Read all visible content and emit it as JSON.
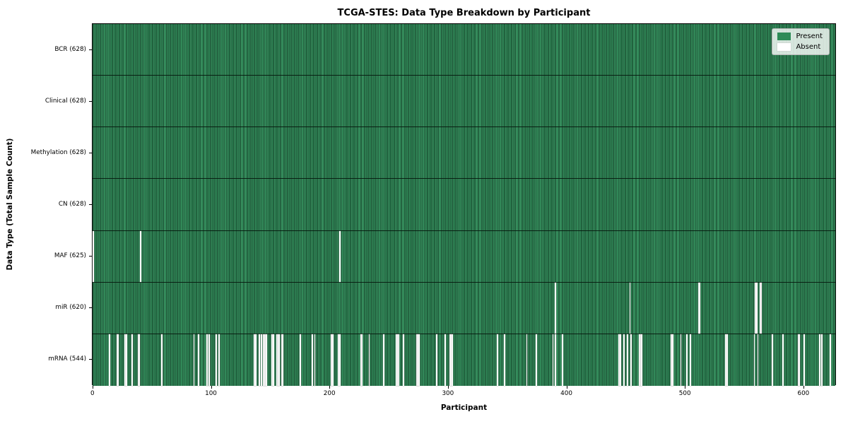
{
  "chart": {
    "title": "TCGA-STES: Data Type Breakdown by Participant",
    "xlabel": "Participant",
    "ylabel": "Data Type (Total Sample Count)"
  },
  "legend": {
    "present_label": "Present",
    "absent_label": "Absent"
  },
  "colors": {
    "present": "#2e8b57",
    "absent": "#ffffff",
    "bar_edge": "#0a2014",
    "axis": "#000000",
    "legend_background": "#e8ece8"
  },
  "chart_data": {
    "type": "heatmap",
    "title": "TCGA-STES: Data Type Breakdown by Participant",
    "xlabel": "Participant",
    "ylabel": "Data Type (Total Sample Count)",
    "legend": [
      "Present",
      "Absent"
    ],
    "legend_position": "upper right",
    "n_participants": 628,
    "x_range": [
      0,
      628
    ],
    "x_ticks": [
      0,
      100,
      200,
      300,
      400,
      500,
      600
    ],
    "rows": [
      {
        "data_type": "BCR",
        "label": "BCR (628)",
        "present_count": 628,
        "absent_participants": []
      },
      {
        "data_type": "Clinical",
        "label": "Clinical (628)",
        "present_count": 628,
        "absent_participants": []
      },
      {
        "data_type": "Methylation",
        "label": "Methylation (628)",
        "present_count": 628,
        "absent_participants": []
      },
      {
        "data_type": "CN",
        "label": "CN (628)",
        "present_count": 628,
        "absent_participants": []
      },
      {
        "data_type": "MAF",
        "label": "MAF (625)",
        "present_count": 625,
        "absent_participants": [
          0,
          40,
          208
        ]
      },
      {
        "data_type": "miR",
        "label": "miR (620)",
        "present_count": 620,
        "absent_participants": [
          390,
          453,
          511,
          512,
          559,
          560,
          563,
          564
        ]
      },
      {
        "data_type": "mRNA",
        "label": "mRNA (544)",
        "present_count": 544,
        "absent_participants": [
          14,
          20,
          21,
          27,
          28,
          33,
          38,
          39,
          58,
          85,
          89,
          96,
          98,
          104,
          106,
          136,
          137,
          140,
          142,
          144,
          145,
          146,
          151,
          152,
          155,
          156,
          157,
          159,
          160,
          175,
          185,
          187,
          201,
          202,
          207,
          208,
          226,
          227,
          233,
          245,
          256,
          257,
          258,
          262,
          273,
          274,
          275,
          290,
          297,
          301,
          302,
          303,
          341,
          347,
          366,
          374,
          388,
          390,
          396,
          444,
          445,
          448,
          451,
          454,
          461,
          462,
          463,
          488,
          489,
          496,
          501,
          504,
          534,
          535,
          558,
          561,
          573,
          582,
          595,
          596,
          600,
          613,
          615,
          622
        ]
      }
    ]
  }
}
